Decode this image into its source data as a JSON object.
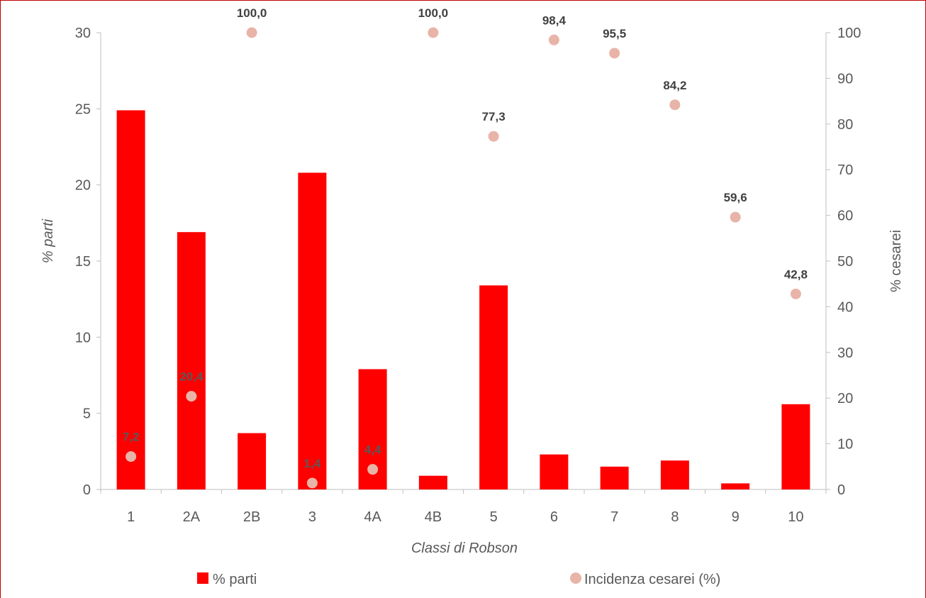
{
  "chart_data": {
    "type": "bar",
    "categories": [
      "1",
      "2A",
      "2B",
      "3",
      "4A",
      "4B",
      "5",
      "6",
      "7",
      "8",
      "9",
      "10"
    ],
    "series": [
      {
        "name": "% parti",
        "type": "bar",
        "axis": "left",
        "color": "#ff0000",
        "values": [
          24.9,
          16.9,
          3.7,
          20.8,
          7.9,
          0.9,
          13.4,
          2.3,
          1.5,
          1.9,
          0.4,
          5.6
        ]
      },
      {
        "name": "Incidenza cesarei (%)",
        "type": "scatter",
        "axis": "right",
        "color": "#e8b4a8",
        "values": [
          7.2,
          20.4,
          100.0,
          1.4,
          4.4,
          100.0,
          77.3,
          98.4,
          95.5,
          84.2,
          59.6,
          42.8
        ],
        "labels": [
          "7,2",
          "20,4",
          "100,0",
          "1,4",
          "4,4",
          "100,0",
          "77,3",
          "98,4",
          "95,5",
          "84,2",
          "59,6",
          "42,8"
        ]
      }
    ],
    "xlabel": "Classi di Robson",
    "ylabel": "% parti",
    "y2label": "% cesarei",
    "ylim": [
      0,
      30
    ],
    "y2lim": [
      0,
      100
    ],
    "yticks": [
      "0",
      "5",
      "10",
      "15",
      "20",
      "25",
      "30"
    ],
    "y2ticks": [
      "0",
      "10",
      "20",
      "30",
      "40",
      "50",
      "60",
      "70",
      "80",
      "90",
      "100"
    ],
    "grid": false,
    "legend_position": "bottom",
    "label_color_dark": "#404040",
    "label_color_light": "#595959"
  }
}
